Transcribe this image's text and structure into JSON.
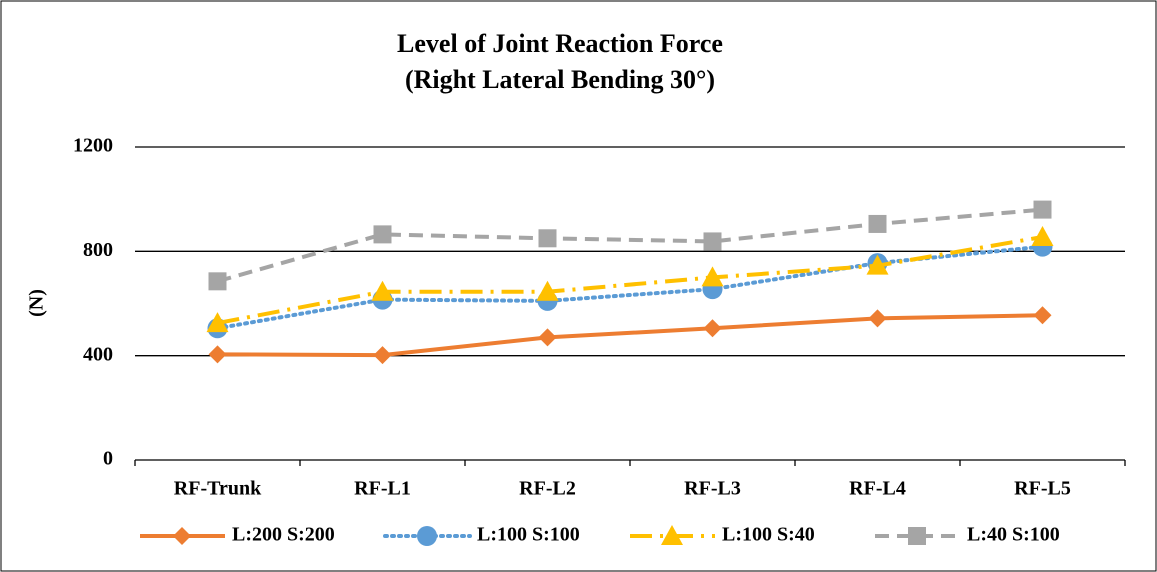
{
  "chart_data": {
    "type": "line",
    "title": "Level of Joint Reaction Force",
    "subtitle": "(Right Lateral Bending 30°)",
    "y_label": "(N)",
    "categories": [
      "RF-Trunk",
      "RF-L1",
      "RF-L2",
      "RF-L3",
      "RF-L4",
      "RF-L5"
    ],
    "series": [
      {
        "name": "L:200 S:200",
        "color": "#ED7D31",
        "dash": "solid",
        "marker": "diamond",
        "values": [
          405,
          402,
          470,
          505,
          543,
          555
        ]
      },
      {
        "name": "L:100 S:100",
        "color": "#5B9BD5",
        "dash": "dot",
        "marker": "circle",
        "values": [
          505,
          615,
          610,
          655,
          755,
          818
        ]
      },
      {
        "name": "L:100 S:40",
        "color": "#FFC000",
        "dash": "dashdot",
        "marker": "triangle",
        "values": [
          525,
          645,
          645,
          700,
          745,
          855
        ]
      },
      {
        "name": "L:40 S:100",
        "color": "#A5A5A5",
        "dash": "dash",
        "marker": "square",
        "values": [
          685,
          865,
          850,
          838,
          905,
          960
        ]
      }
    ],
    "ylim": [
      0,
      1200
    ],
    "yticks": [
      0,
      400,
      800,
      1200
    ],
    "grid": true,
    "legend": "bottom"
  }
}
